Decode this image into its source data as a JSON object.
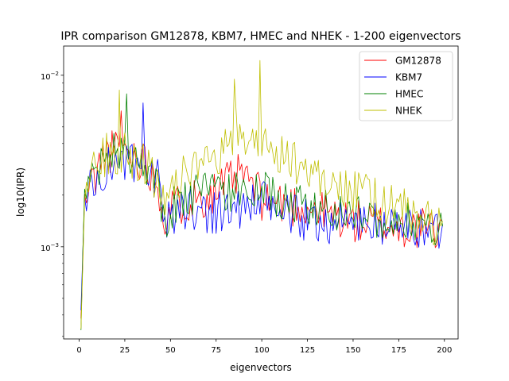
{
  "chart_data": {
    "type": "line",
    "title": "IPR comparison GM12878, KBM7, HMEC and NHEK - 1-200 eigenvectors",
    "xlabel": "eigenvectors",
    "ylabel": "log10(IPR)",
    "xlim": [
      -8.5,
      207.5
    ],
    "ylim": [
      0.00029,
      0.0148
    ],
    "yscale": "log",
    "grid": false,
    "legend_position": "top-right",
    "x_ticks": [
      0,
      25,
      50,
      75,
      100,
      125,
      150,
      175,
      200
    ],
    "y_ticks": [
      {
        "value": 0.001,
        "base": "10",
        "exp": "−3"
      },
      {
        "value": 0.01,
        "base": "10",
        "exp": "−2"
      }
    ],
    "series": [
      {
        "name": "GM12878",
        "color": "#ff0000"
      },
      {
        "name": "KBM7",
        "color": "#0000ff"
      },
      {
        "name": "HMEC",
        "color": "#008000"
      },
      {
        "name": "NHEK",
        "color": "#bfbf00"
      }
    ]
  }
}
